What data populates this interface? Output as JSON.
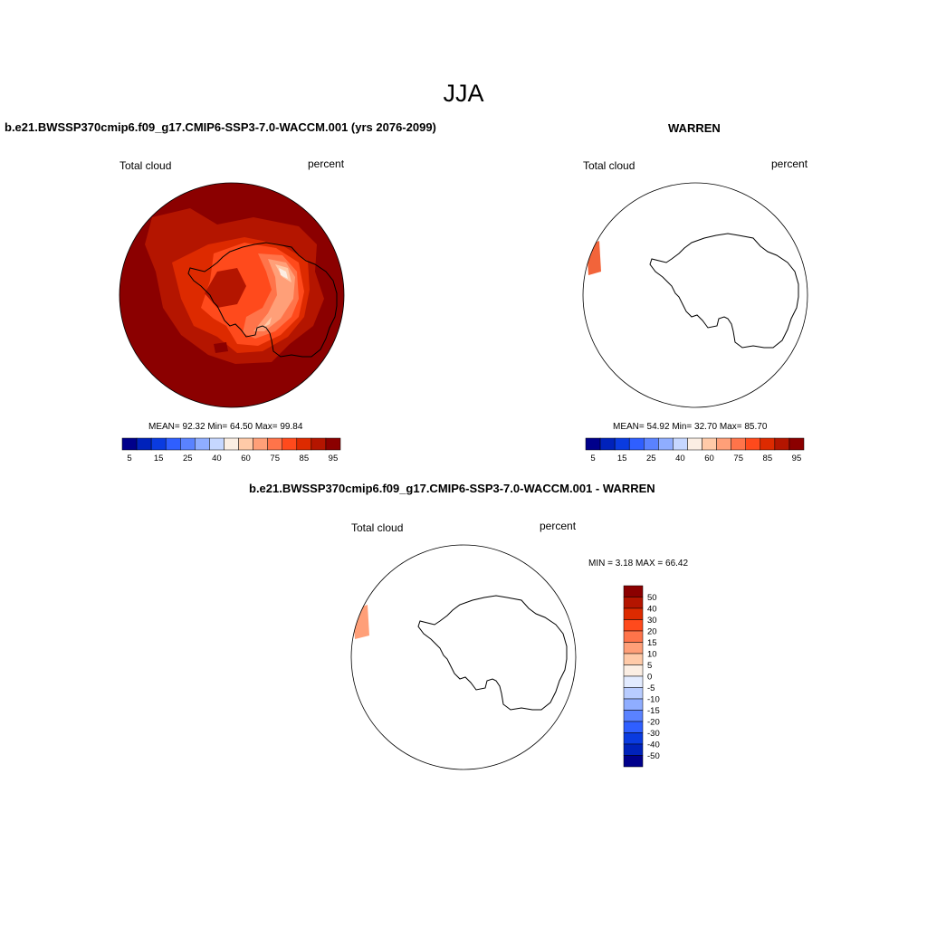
{
  "figure": {
    "season": "JJA",
    "panel_a": {
      "title": "b.e21.BWSSP370cmip6.f09_g17.CMIP6-SSP3-7.0-WACCM.001 (yrs 2076-2099)",
      "left_label": "Total cloud",
      "right_label": "percent",
      "stats": "MEAN=  92.32  Min=  64.50  Max=  99.84"
    },
    "panel_b": {
      "title": "WARREN",
      "left_label": "Total cloud",
      "right_label": "percent",
      "stats": "MEAN=  54.92  Min=  32.70  Max=  85.70"
    },
    "panel_c": {
      "title": "b.e21.BWSSP370cmip6.f09_g17.CMIP6-SSP3-7.0-WACCM.001 - WARREN",
      "left_label": "Total cloud",
      "right_label": "percent",
      "stats": "MIN =   3.18 MAX =  66.42"
    },
    "colorbar_abs": {
      "labels": [
        "5",
        "15",
        "25",
        "40",
        "60",
        "75",
        "85",
        "95"
      ],
      "colors": [
        "#00008b",
        "#0022bb",
        "#0a3be0",
        "#2f5fff",
        "#5a82ff",
        "#8fadff",
        "#c6d7ff",
        "#fbeee3",
        "#ffcaa8",
        "#ff9f78",
        "#ff744a",
        "#ff4a1c",
        "#dd2a00",
        "#b41500",
        "#8b0000"
      ]
    },
    "colorbar_diff": {
      "labels": [
        "50",
        "40",
        "30",
        "20",
        "15",
        "10",
        "5",
        "0",
        "-5",
        "-10",
        "-15",
        "-20",
        "-30",
        "-40",
        "-50"
      ],
      "colors": [
        "#8b0000",
        "#b41500",
        "#dd2a00",
        "#ff4a1c",
        "#ff744a",
        "#ff9f78",
        "#ffcaa8",
        "#fbeee3",
        "#e2ebff",
        "#b8ccff",
        "#8fadff",
        "#5a82ff",
        "#2f5fff",
        "#0a3be0",
        "#0022bb",
        "#00008b"
      ]
    },
    "fill_colors": {
      "background": "#8b0000",
      "level_1": "#b41500",
      "level_2": "#dd2a00",
      "level_3": "#ff4a1c",
      "level_4": "#ff744a",
      "level_5": "#ff9f78",
      "level_6": "#ffcaa8",
      "level_7": "#fbeee3",
      "warren_patch": "#f2643a",
      "diff_patch": "#ff9f78"
    }
  }
}
